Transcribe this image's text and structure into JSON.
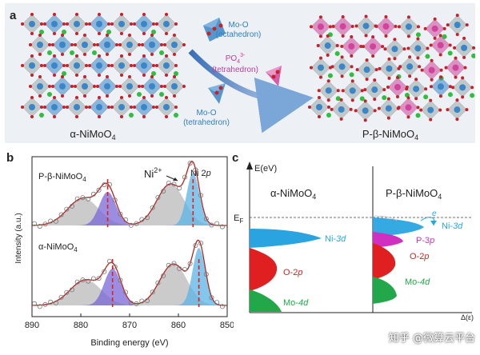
{
  "panel_a": {
    "letter": "a",
    "left_label": "α-NiMoO",
    "left_sub": "4",
    "right_label": "P-β-NiMoO",
    "right_sub": "4",
    "oct_label_1": "Mo-O",
    "oct_label_2": "(octahedron)",
    "po4_label": "PO",
    "po4_sub": "4",
    "po4_sup": "3-",
    "po4_label_2": "(tetrahedron)",
    "tet_label_1": "Mo-O",
    "tet_label_2": "(tetrahedron)",
    "colors": {
      "mo_o": "#3a86c8",
      "po4": "#d0449c",
      "ni": "#2fbf3f",
      "o": "#c8202a",
      "oct": "#9aa9a8"
    }
  },
  "panel_b": {
    "letter": "b",
    "top_sample": "P-β-NiMoO",
    "top_sample_sub": "4",
    "bottom_sample": "α-NiMoO",
    "bottom_sample_sub": "4",
    "ni_ion": "Ni",
    "ni_ion_sup": "2+",
    "ni_core": "Ni 2",
    "ni_core_italic": "p"
  },
  "panel_c": {
    "letter": "c",
    "y_axis": "E(eV)",
    "fermi": "E",
    "fermi_sub": "F",
    "left_title": "α-NiMoO",
    "left_title_sub": "4",
    "right_title": "P-β-NiMoO",
    "right_title_sub": "4",
    "x_axis": "Δ(ε)",
    "electron": "e",
    "left_bands": [
      {
        "label": "Ni-",
        "orbital": "3d",
        "color": "#2aa4e0"
      },
      {
        "label": "O-2",
        "orbital": "p",
        "color": "#e02020"
      },
      {
        "label": "Mo-",
        "orbital": "4d",
        "color": "#22a84a"
      }
    ],
    "right_bands": [
      {
        "label": "Ni-",
        "orbital": "3d",
        "color": "#2aa4e0"
      },
      {
        "label": "P-3",
        "orbital": "p",
        "color": "#d030c0"
      },
      {
        "label": "O-2",
        "orbital": "p",
        "color": "#e02020"
      },
      {
        "label": "Mo-",
        "orbital": "4d",
        "color": "#22a84a"
      }
    ]
  },
  "watermark": "知乎 @微算云平台",
  "chart_data": {
    "type": "line",
    "title": "",
    "xlabel": "Binding energy (eV)",
    "ylabel": "Intensity (a.u.)",
    "xlim": [
      890,
      850
    ],
    "x_ticks": [
      "890",
      "880",
      "870",
      "860",
      "850"
    ],
    "series": [
      {
        "name": "P-β-NiMoO4",
        "peaks_eV": [
          874.5,
          857.0
        ]
      },
      {
        "name": "α-NiMoO4",
        "peaks_eV": [
          873.5,
          855.8
        ]
      }
    ]
  }
}
